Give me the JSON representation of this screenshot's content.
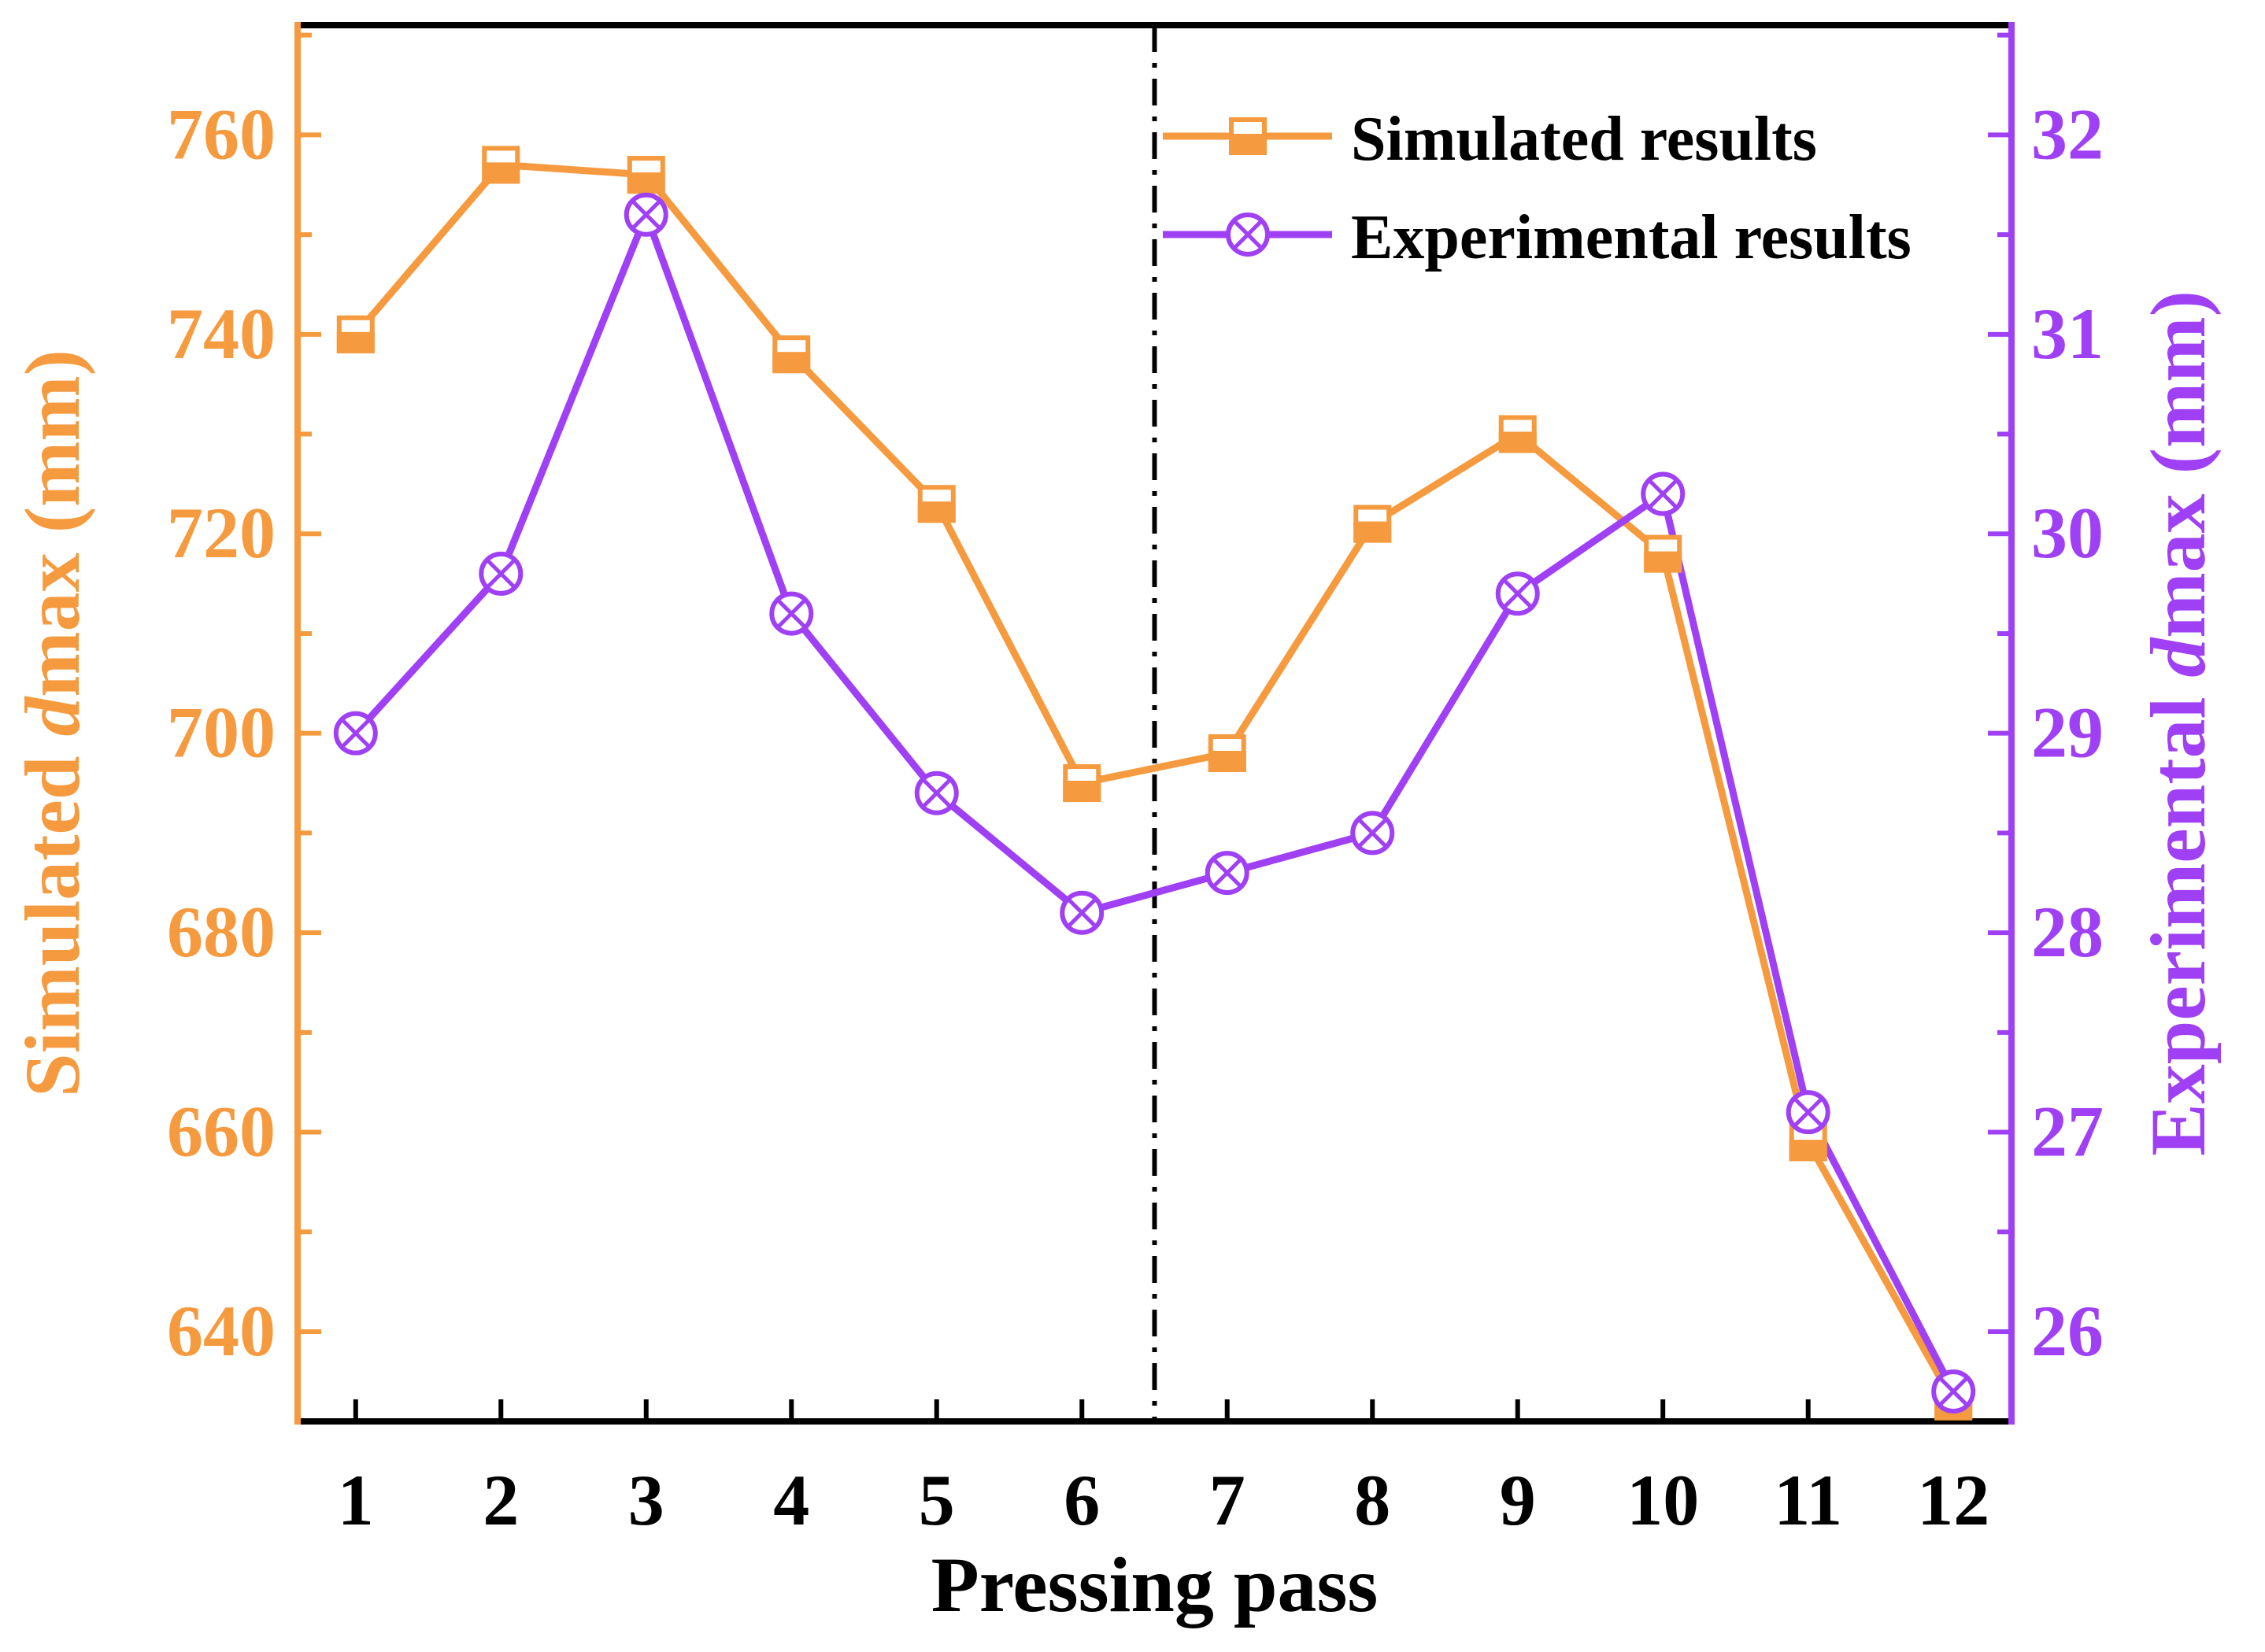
{
  "chart_data": {
    "type": "line",
    "x": [
      1,
      2,
      3,
      4,
      5,
      6,
      7,
      8,
      9,
      10,
      11,
      12
    ],
    "xlabel": "Pressing pass",
    "xlim": [
      0.6,
      12.4
    ],
    "left_axis": {
      "label_prefix": "Simulated ",
      "label_var": "d",
      "label_suffix": "max (mm)",
      "ylim": [
        631,
        771
      ],
      "ticks": [
        640,
        660,
        680,
        700,
        720,
        740,
        760
      ],
      "color": "#F59A3E"
    },
    "right_axis": {
      "label_prefix": "Experimental  ",
      "label_var": "d",
      "label_suffix": "max (mm)",
      "ylim": [
        25.55,
        32.55
      ],
      "ticks": [
        26,
        27,
        28,
        29,
        30,
        31,
        32
      ],
      "color": "#A040F5"
    },
    "series": [
      {
        "name": "Simulated results",
        "axis": "left",
        "marker": "half-filled-square",
        "color": "#F59A3E",
        "values": [
          740,
          757,
          756,
          738,
          723,
          695,
          698,
          721,
          730,
          718,
          659,
          633
        ]
      },
      {
        "name": "Experimental results",
        "axis": "right",
        "marker": "circle-x",
        "color": "#A040F5",
        "values": [
          29.0,
          29.8,
          31.6,
          29.6,
          28.7,
          28.1,
          28.3,
          28.5,
          29.7,
          30.2,
          27.1,
          25.7
        ]
      }
    ],
    "divider_at_x": 6.5,
    "legend_position": "top-right"
  }
}
